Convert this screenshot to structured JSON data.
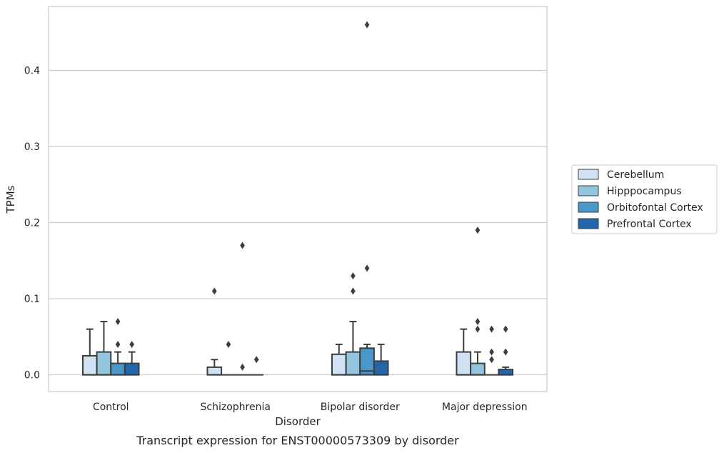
{
  "chart_data": {
    "type": "box",
    "caption": "Transcript expression for ENST00000573309 by disorder",
    "xlabel": "Disorder",
    "ylabel": "TPMs",
    "ylim": [
      -0.022,
      0.484
    ],
    "yticks": [
      0.0,
      0.1,
      0.2,
      0.3,
      0.4
    ],
    "ytick_labels": [
      "0.0",
      "0.1",
      "0.2",
      "0.3",
      "0.4"
    ],
    "grid": "horizontal",
    "legend_position": "right",
    "categories": [
      "Control",
      "Schizophrenia",
      "Bipolar disorder",
      "Major depression"
    ],
    "series": [
      {
        "name": "Cerebellum",
        "color": "#cfe1f2",
        "boxes": [
          {
            "q1": 0.0,
            "median": 0.0,
            "q3": 0.025,
            "whisker_low": 0.0,
            "whisker_high": 0.06,
            "outliers": []
          },
          {
            "q1": 0.0,
            "median": 0.0,
            "q3": 0.01,
            "whisker_low": 0.0,
            "whisker_high": 0.02,
            "outliers": [
              0.11
            ]
          },
          {
            "q1": 0.0,
            "median": 0.0,
            "q3": 0.027,
            "whisker_low": 0.0,
            "whisker_high": 0.04,
            "outliers": []
          },
          {
            "q1": 0.0,
            "median": 0.0,
            "q3": 0.03,
            "whisker_low": 0.0,
            "whisker_high": 0.06,
            "outliers": []
          }
        ]
      },
      {
        "name": "Hipppocampus",
        "color": "#93c4de",
        "boxes": [
          {
            "q1": 0.0,
            "median": 0.0,
            "q3": 0.03,
            "whisker_low": 0.0,
            "whisker_high": 0.07,
            "outliers": []
          },
          {
            "q1": 0.0,
            "median": 0.0,
            "q3": 0.0,
            "whisker_low": 0.0,
            "whisker_high": 0.0,
            "outliers": [
              0.04
            ]
          },
          {
            "q1": 0.0,
            "median": 0.0,
            "q3": 0.03,
            "whisker_low": 0.0,
            "whisker_high": 0.07,
            "outliers": [
              0.11,
              0.13
            ]
          },
          {
            "q1": 0.0,
            "median": 0.0,
            "q3": 0.015,
            "whisker_low": 0.0,
            "whisker_high": 0.03,
            "outliers": [
              0.06,
              0.07,
              0.19
            ]
          }
        ]
      },
      {
        "name": "Orbitofontal Cortex",
        "color": "#4a98c9",
        "boxes": [
          {
            "q1": 0.0,
            "median": 0.0,
            "q3": 0.015,
            "whisker_low": 0.0,
            "whisker_high": 0.03,
            "outliers": [
              0.04,
              0.07
            ]
          },
          {
            "q1": 0.0,
            "median": 0.0,
            "q3": 0.0,
            "whisker_low": 0.0,
            "whisker_high": 0.0,
            "outliers": [
              0.01,
              0.17
            ]
          },
          {
            "q1": 0.0,
            "median": 0.005,
            "q3": 0.035,
            "whisker_low": 0.0,
            "whisker_high": 0.04,
            "outliers": [
              0.14,
              0.46
            ]
          },
          {
            "q1": 0.0,
            "median": 0.0,
            "q3": 0.0,
            "whisker_low": 0.0,
            "whisker_high": 0.0,
            "outliers": [
              0.02,
              0.03,
              0.06
            ]
          }
        ]
      },
      {
        "name": "Prefrontal Cortex",
        "color": "#2366ad",
        "boxes": [
          {
            "q1": 0.0,
            "median": 0.0,
            "q3": 0.015,
            "whisker_low": 0.0,
            "whisker_high": 0.03,
            "outliers": [
              0.04
            ]
          },
          {
            "q1": 0.0,
            "median": 0.0,
            "q3": 0.0,
            "whisker_low": 0.0,
            "whisker_high": 0.0,
            "outliers": [
              0.02
            ]
          },
          {
            "q1": 0.0,
            "median": 0.0,
            "q3": 0.018,
            "whisker_low": 0.0,
            "whisker_high": 0.04,
            "outliers": []
          },
          {
            "q1": 0.0,
            "median": 0.0,
            "q3": 0.007,
            "whisker_low": 0.0,
            "whisker_high": 0.01,
            "outliers": [
              0.03,
              0.06
            ]
          }
        ]
      }
    ]
  }
}
